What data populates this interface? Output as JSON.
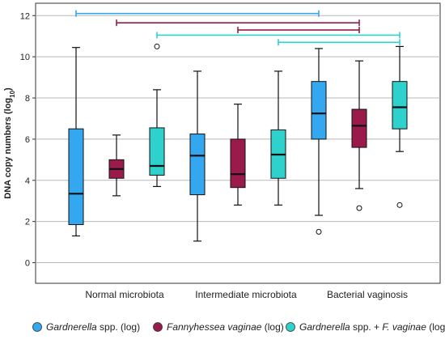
{
  "chart_data": {
    "type": "boxplot",
    "ylabel": "DNA copy numbers (log",
    "ylabel_sub": "10",
    "ylabel_end": ")",
    "ylim": [
      -1,
      12.6
    ],
    "yticks": [
      0,
      2,
      4,
      6,
      8,
      10,
      12
    ],
    "grid": true,
    "categories": [
      "Normal microbiota",
      "Intermediate microbiota",
      "Bacterial vaginosis"
    ],
    "series": [
      {
        "name": "Gardnerella spp. (log)",
        "name_parts": [
          {
            "text": "Gardnerella",
            "italic": true
          },
          {
            "text": " spp. (log)",
            "italic": false
          }
        ],
        "color": "#33a7f0",
        "boxes": [
          {
            "whisker_low": 1.3,
            "q1": 1.85,
            "median": 3.35,
            "q3": 6.5,
            "whisker_high": 10.45,
            "outliers": []
          },
          {
            "whisker_low": 1.05,
            "q1": 3.3,
            "median": 5.2,
            "q3": 6.25,
            "whisker_high": 9.3,
            "outliers": []
          },
          {
            "whisker_low": 2.3,
            "q1": 6.0,
            "median": 7.25,
            "q3": 8.8,
            "whisker_high": 10.4,
            "outliers": [
              1.5
            ]
          }
        ]
      },
      {
        "name": "Fannyhessea vaginae (log)",
        "name_parts": [
          {
            "text": "Fannyhessea vaginae",
            "italic": true
          },
          {
            "text": " (log)",
            "italic": false
          }
        ],
        "color": "#9b1a4c",
        "boxes": [
          {
            "whisker_low": 3.25,
            "q1": 4.1,
            "median": 4.55,
            "q3": 5.0,
            "whisker_high": 6.2,
            "outliers": []
          },
          {
            "whisker_low": 2.8,
            "q1": 3.65,
            "median": 4.3,
            "q3": 6.0,
            "whisker_high": 7.7,
            "outliers": []
          },
          {
            "whisker_low": 3.6,
            "q1": 5.6,
            "median": 6.65,
            "q3": 7.45,
            "whisker_high": 9.8,
            "outliers": [
              2.65
            ]
          }
        ]
      },
      {
        "name": "Gardnerella spp. + F. vaginae (log)",
        "name_parts": [
          {
            "text": "Gardnerella",
            "italic": true
          },
          {
            "text": " spp. + ",
            "italic": false
          },
          {
            "text": "F. vaginae",
            "italic": true
          },
          {
            "text": " (log)",
            "italic": false
          }
        ],
        "color": "#2ed1cc",
        "boxes": [
          {
            "whisker_low": 3.7,
            "q1": 4.25,
            "median": 4.7,
            "q3": 6.55,
            "whisker_high": 8.4,
            "outliers": [
              10.5
            ]
          },
          {
            "whisker_low": 2.8,
            "q1": 4.1,
            "median": 5.25,
            "q3": 6.45,
            "whisker_high": 9.3,
            "outliers": []
          },
          {
            "whisker_low": 5.4,
            "q1": 6.5,
            "median": 7.55,
            "q3": 8.8,
            "whisker_high": 10.5,
            "outliers": [
              2.8
            ]
          }
        ]
      }
    ],
    "significance_brackets": [
      {
        "series": 0,
        "from_category": 0,
        "to_category": 2,
        "y": 12.1,
        "color": "#33a7f0"
      },
      {
        "series": 1,
        "from_category": 0,
        "to_category": 2,
        "y": 11.65,
        "color": "#9b1a4c"
      },
      {
        "series": 1,
        "from_category": 1,
        "to_category": 2,
        "y": 11.3,
        "color": "#9b1a4c"
      },
      {
        "series": 2,
        "from_category": 0,
        "to_category": 2,
        "y": 11.05,
        "color": "#2ed1cc"
      },
      {
        "series": 2,
        "from_category": 1,
        "to_category": 2,
        "y": 10.7,
        "color": "#2ed1cc"
      }
    ]
  }
}
